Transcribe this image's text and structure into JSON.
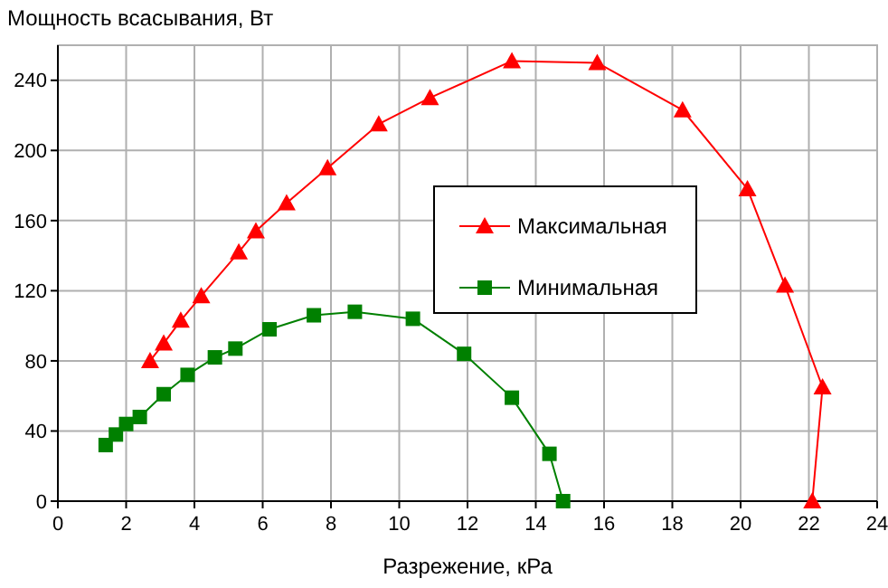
{
  "chart_data": {
    "type": "line",
    "ylabel": "Мощность всасывания, Вт",
    "xlabel": "Разрежение, кРа",
    "xlim": [
      0,
      24
    ],
    "xticks": [
      0,
      2,
      4,
      6,
      8,
      10,
      12,
      14,
      16,
      18,
      20,
      22,
      24
    ],
    "ylim": [
      0,
      260
    ],
    "yticks": [
      0,
      40,
      80,
      120,
      160,
      200,
      240
    ],
    "grid": true,
    "legend": "right",
    "line_style": "solid",
    "series": [
      {
        "name": "Максимальная",
        "color": "#ff0000",
        "marker": "triangle",
        "x": [
          2.7,
          3.1,
          3.6,
          4.2,
          5.3,
          5.8,
          6.7,
          7.9,
          9.4,
          10.9,
          13.3,
          15.8,
          18.3,
          20.2,
          21.3,
          22.4,
          22.1
        ],
        "values": [
          80,
          90,
          103,
          117,
          142,
          154,
          170,
          190,
          215,
          230,
          251,
          250,
          223,
          178,
          123,
          65,
          0
        ]
      },
      {
        "name": "Минимальная",
        "color": "#008000",
        "marker": "square",
        "x": [
          1.4,
          1.7,
          2.0,
          2.4,
          3.1,
          3.8,
          4.6,
          5.2,
          6.2,
          7.5,
          8.7,
          10.4,
          11.9,
          13.3,
          14.4,
          14.8
        ],
        "values": [
          32,
          38,
          44,
          48,
          61,
          72,
          82,
          87,
          98,
          106,
          108,
          104,
          84,
          59,
          27,
          0
        ]
      }
    ]
  }
}
